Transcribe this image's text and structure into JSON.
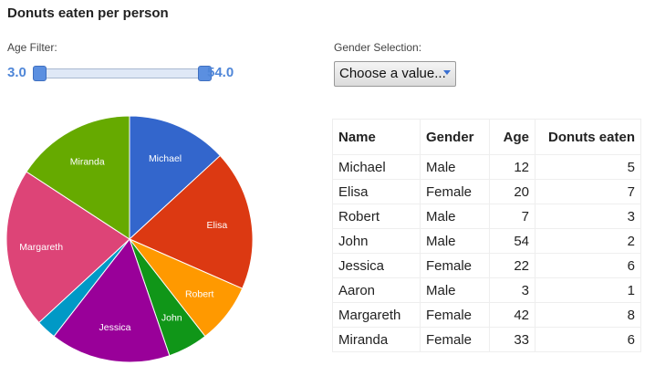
{
  "title": "Donuts eaten per person",
  "age_filter": {
    "label": "Age Filter:",
    "min_label": "3.0",
    "max_label": "54.0",
    "low": 3,
    "high": 54,
    "range_min": 3,
    "range_max": 54
  },
  "gender_selection": {
    "label": "Gender Selection:",
    "selected": "Choose a value..."
  },
  "table": {
    "headers": [
      "Name",
      "Gender",
      "Age",
      "Donuts eaten"
    ],
    "rows": [
      [
        "Michael",
        "Male",
        "12",
        "5"
      ],
      [
        "Elisa",
        "Female",
        "20",
        "7"
      ],
      [
        "Robert",
        "Male",
        "7",
        "3"
      ],
      [
        "John",
        "Male",
        "54",
        "2"
      ],
      [
        "Jessica",
        "Female",
        "22",
        "6"
      ],
      [
        "Aaron",
        "Male",
        "3",
        "1"
      ],
      [
        "Margareth",
        "Female",
        "42",
        "8"
      ],
      [
        "Miranda",
        "Female",
        "33",
        "6"
      ]
    ]
  },
  "chart_data": {
    "type": "pie",
    "categories": [
      "Michael",
      "Elisa",
      "Robert",
      "John",
      "Jessica",
      "Aaron",
      "Margareth",
      "Miranda"
    ],
    "values": [
      5,
      7,
      3,
      2,
      6,
      1,
      8,
      6
    ],
    "slice_labels": [
      "Michael",
      "Elisa",
      "Robert",
      "John",
      "Jessica",
      "",
      "Margareth",
      "Miranda"
    ],
    "colors": [
      "#3366cc",
      "#dc3912",
      "#ff9900",
      "#109618",
      "#990099",
      "#0099c6",
      "#dd4477",
      "#66aa00"
    ]
  }
}
